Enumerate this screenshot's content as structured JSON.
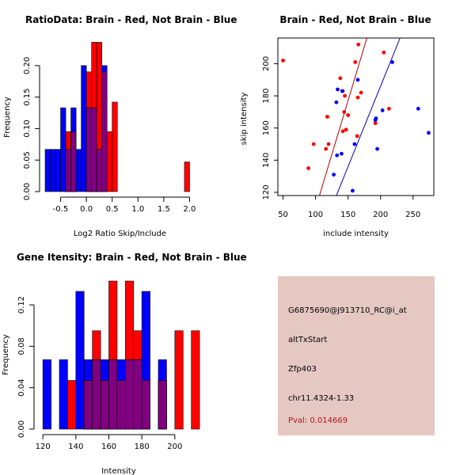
{
  "colors": {
    "red": "#ff0000",
    "blue": "#0000ff",
    "overlap": "#800080",
    "panel_bg": "#e6c8c2",
    "pval_text": "#b01515",
    "red_line": "#b00000",
    "blue_line": "#0000b0"
  },
  "chart_data": [
    {
      "type": "histogram",
      "title": "RatioData: Brain - Red, Not Brain - Blue",
      "xlabel": "Log2 Ratio Skip/Include",
      "ylabel": "Frequency",
      "xlim": [
        -0.8,
        2.1
      ],
      "ylim": [
        0,
        0.235
      ],
      "xticks": [
        -0.5,
        0.0,
        0.5,
        1.0,
        1.5,
        2.0
      ],
      "xtick_labels": [
        "-0.5",
        "0.0",
        "0.5",
        "1.0",
        "1.5",
        "2.0"
      ],
      "yticks": [
        0.0,
        0.05,
        0.1,
        0.15,
        0.2
      ],
      "ytick_labels": [
        "0.00",
        "0.05",
        "0.10",
        "0.15",
        "0.20"
      ],
      "series": [
        {
          "name": "Brain",
          "color": "red",
          "bins": [
            {
              "x0": -0.4,
              "x1": -0.3,
              "value": 0.095
            },
            {
              "x0": -0.3,
              "x1": -0.2,
              "value": 0.095
            },
            {
              "x0": -0.2,
              "x1": -0.1,
              "value": 0.0
            },
            {
              "x0": -0.1,
              "x1": 0.0,
              "value": 0.0
            },
            {
              "x0": 0.0,
              "x1": 0.1,
              "value": 0.19
            },
            {
              "x0": 0.1,
              "x1": 0.2,
              "value": 0.237
            },
            {
              "x0": 0.2,
              "x1": 0.3,
              "value": 0.237
            },
            {
              "x0": 0.3,
              "x1": 0.4,
              "value": 0.19
            },
            {
              "x0": 0.4,
              "x1": 0.5,
              "value": 0.095
            },
            {
              "x0": 0.5,
              "x1": 0.6,
              "value": 0.142
            },
            {
              "x0": 1.9,
              "x1": 2.0,
              "value": 0.047
            }
          ]
        },
        {
          "name": "Not Brain",
          "color": "blue",
          "bins": [
            {
              "x0": -0.8,
              "x1": -0.7,
              "value": 0.067
            },
            {
              "x0": -0.7,
              "x1": -0.6,
              "value": 0.067
            },
            {
              "x0": -0.6,
              "x1": -0.5,
              "value": 0.067
            },
            {
              "x0": -0.5,
              "x1": -0.4,
              "value": 0.133
            },
            {
              "x0": -0.4,
              "x1": -0.3,
              "value": 0.067
            },
            {
              "x0": -0.3,
              "x1": -0.2,
              "value": 0.133
            },
            {
              "x0": -0.2,
              "x1": -0.1,
              "value": 0.067
            },
            {
              "x0": -0.1,
              "x1": 0.0,
              "value": 0.2
            },
            {
              "x0": 0.0,
              "x1": 0.1,
              "value": 0.133
            },
            {
              "x0": 0.1,
              "x1": 0.2,
              "value": 0.133
            },
            {
              "x0": 0.2,
              "x1": 0.3,
              "value": 0.067
            },
            {
              "x0": 0.3,
              "x1": 0.4,
              "value": 0.2
            }
          ]
        }
      ]
    },
    {
      "type": "scatter",
      "title": "Brain - Red, Not Brain - Blue",
      "xlabel": "include intensity",
      "ylabel": "skip intensity",
      "xlim": [
        42,
        282
      ],
      "ylim": [
        118,
        216
      ],
      "xticks": [
        50,
        100,
        150,
        200,
        250
      ],
      "xtick_labels": [
        "50",
        "100",
        "150",
        "200",
        "250"
      ],
      "yticks": [
        120,
        140,
        160,
        180,
        200
      ],
      "ytick_labels": [
        "120",
        "140",
        "160",
        "180",
        "200"
      ],
      "series": [
        {
          "name": "Brain",
          "color": "red",
          "points": [
            [
              50,
              202
            ],
            [
              89,
              135
            ],
            [
              97,
              150
            ],
            [
              116,
              147
            ],
            [
              118,
              167
            ],
            [
              120,
              150
            ],
            [
              138,
              191
            ],
            [
              142,
              158
            ],
            [
              142,
              183
            ],
            [
              144,
              170
            ],
            [
              145,
              180
            ],
            [
              147,
              159
            ],
            [
              150,
              168
            ],
            [
              161,
              201
            ],
            [
              164,
              155
            ],
            [
              165,
              179
            ],
            [
              166,
              212
            ],
            [
              170,
              182
            ],
            [
              192,
              163
            ],
            [
              205,
              207
            ],
            [
              213,
              172
            ]
          ],
          "fit": [
            [
              106,
              118
            ],
            [
              179,
              216
            ]
          ]
        },
        {
          "name": "Not Brain",
          "color": "blue",
          "points": [
            [
              128,
              131
            ],
            [
              132,
              176
            ],
            [
              133,
              143
            ],
            [
              134,
              184
            ],
            [
              140,
              144
            ],
            [
              141,
              183
            ],
            [
              157,
              121
            ],
            [
              160,
              150
            ],
            [
              165,
              190
            ],
            [
              192,
              165
            ],
            [
              193,
              166
            ],
            [
              195,
              147
            ],
            [
              203,
              171
            ],
            [
              218,
              201
            ],
            [
              258,
              172
            ],
            [
              274,
              157
            ]
          ],
          "fit": [
            [
              132,
              118
            ],
            [
              230,
              216
            ]
          ]
        }
      ]
    },
    {
      "type": "histogram",
      "title": "Gene Itensity: Brain - Red, Not Brain - Blue",
      "xlabel": "Intensity",
      "ylabel": "Frequency",
      "xlim": [
        118,
        214
      ],
      "ylim": [
        0,
        0.143
      ],
      "xticks": [
        120,
        140,
        160,
        180,
        200
      ],
      "xtick_labels": [
        "120",
        "140",
        "160",
        "180",
        "200"
      ],
      "yticks": [
        0.0,
        0.04,
        0.08,
        0.12
      ],
      "ytick_labels": [
        "0.00",
        "0.04",
        "0.08",
        "0.12"
      ],
      "series": [
        {
          "name": "Brain",
          "color": "red",
          "bins": [
            {
              "x0": 135,
              "x1": 140,
              "value": 0.047
            },
            {
              "x0": 145,
              "x1": 150,
              "value": 0.047
            },
            {
              "x0": 150,
              "x1": 155,
              "value": 0.095
            },
            {
              "x0": 155,
              "x1": 160,
              "value": 0.047
            },
            {
              "x0": 160,
              "x1": 165,
              "value": 0.143
            },
            {
              "x0": 165,
              "x1": 170,
              "value": 0.047
            },
            {
              "x0": 170,
              "x1": 175,
              "value": 0.143
            },
            {
              "x0": 175,
              "x1": 180,
              "value": 0.095
            },
            {
              "x0": 180,
              "x1": 185,
              "value": 0.047
            },
            {
              "x0": 190,
              "x1": 195,
              "value": 0.047
            },
            {
              "x0": 200,
              "x1": 205,
              "value": 0.095
            },
            {
              "x0": 210,
              "x1": 215,
              "value": 0.095
            }
          ]
        },
        {
          "name": "Not Brain",
          "color": "blue",
          "bins": [
            {
              "x0": 120,
              "x1": 125,
              "value": 0.067
            },
            {
              "x0": 130,
              "x1": 135,
              "value": 0.067
            },
            {
              "x0": 135,
              "x1": 140,
              "value": 0.0
            },
            {
              "x0": 140,
              "x1": 145,
              "value": 0.133
            },
            {
              "x0": 145,
              "x1": 150,
              "value": 0.067
            },
            {
              "x0": 150,
              "x1": 155,
              "value": 0.067
            },
            {
              "x0": 155,
              "x1": 160,
              "value": 0.067
            },
            {
              "x0": 160,
              "x1": 165,
              "value": 0.067
            },
            {
              "x0": 165,
              "x1": 170,
              "value": 0.067
            },
            {
              "x0": 170,
              "x1": 175,
              "value": 0.067
            },
            {
              "x0": 175,
              "x1": 180,
              "value": 0.067
            },
            {
              "x0": 180,
              "x1": 185,
              "value": 0.133
            },
            {
              "x0": 190,
              "x1": 195,
              "value": 0.067
            }
          ]
        }
      ]
    }
  ],
  "info_panel": {
    "probe_id": "G6875690@J913710_RC@i_at",
    "event_type": "altTxStart",
    "gene": "Zfp403",
    "location": "chr11.4324-1.33",
    "pval": "Pval: 0.014669"
  }
}
